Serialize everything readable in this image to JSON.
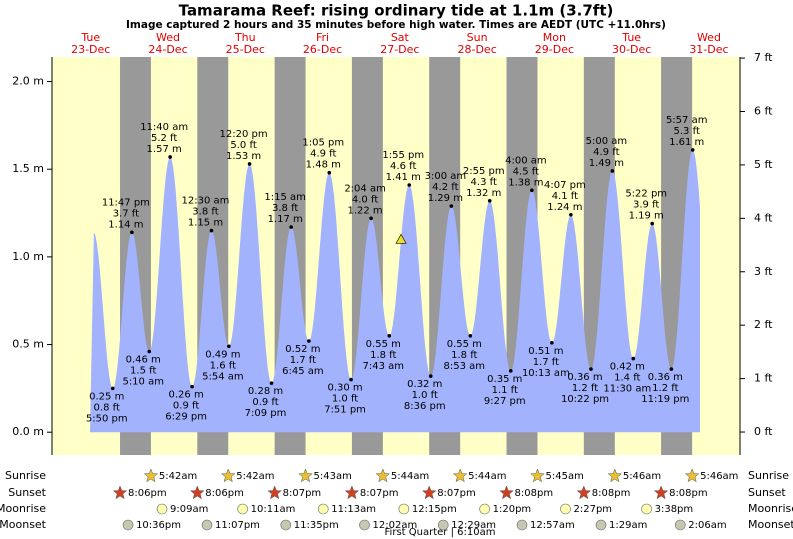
{
  "chart_data": {
    "type": "tide",
    "title": "Tamarama Reef: rising  ordinary tide at 1.1m (3.7ft)",
    "subtitle": "Image captured 2 hours and 35 minutes before high water. Times are AEDT (UTC +11.0hrs)",
    "ylim": [
      -0.13,
      2.14
    ],
    "yticks": [
      {
        "value": 0,
        "label": "0.0 m"
      },
      {
        "value": 0.5,
        "label": "0.5 m"
      },
      {
        "value": 1,
        "label": "1.0 m"
      },
      {
        "value": 1.5,
        "label": "1.5 m"
      },
      {
        "value": 2,
        "label": "2.0 m"
      }
    ],
    "y2lim": [
      -0.43,
      7.02
    ],
    "y2ticks": [
      {
        "value": 0,
        "label": "0 ft"
      },
      {
        "value": 1,
        "label": "1 ft"
      },
      {
        "value": 2,
        "label": "2 ft"
      },
      {
        "value": 3,
        "label": "3 ft"
      },
      {
        "value": 4,
        "label": "4 ft"
      },
      {
        "value": 5,
        "label": "5 ft"
      },
      {
        "value": 6,
        "label": "6 ft"
      },
      {
        "value": 7,
        "label": "7 ft"
      }
    ],
    "current": {
      "height": 1.1
    },
    "colors": {
      "day": "#ffffc8",
      "night": "#999999",
      "water": "#a3b2fc"
    },
    "row_labels": [
      "Sunrise",
      "Sunset",
      "Moonrise",
      "Moonset"
    ],
    "moon_phase": "First Quarter | 6:10am",
    "days": [
      {
        "weekday": "Tue",
        "date": "23-Dec",
        "sunset": "8:06pm",
        "moonset": "10:36pm",
        "tides": [
          {
            "time": "5:50 pm",
            "height": 0.25,
            "height_label": "0.25 m",
            "feet": "0.8 ft"
          },
          {
            "time": "11:47 pm",
            "height": 1.14,
            "height_label": "1.14 m",
            "feet": "3.7 ft"
          }
        ]
      },
      {
        "weekday": "Wed",
        "date": "24-Dec",
        "sunrise": "5:42am",
        "sunset": "8:06pm",
        "moonrise": "9:09am",
        "moonset": "11:07pm",
        "tides": [
          {
            "time": "5:10 am",
            "height": 0.46,
            "height_label": "0.46 m",
            "feet": "1.5 ft"
          },
          {
            "time": "11:40 am",
            "height": 1.57,
            "height_label": "1.57 m",
            "feet": "5.2 ft"
          },
          {
            "time": "6:29 pm",
            "height": 0.26,
            "height_label": "0.26 m",
            "feet": "0.9 ft"
          }
        ]
      },
      {
        "weekday": "Thu",
        "date": "25-Dec",
        "sunrise": "5:42am",
        "sunset": "8:07pm",
        "moonrise": "10:11am",
        "moonset": "11:35pm",
        "tides": [
          {
            "time": "12:30 am",
            "height": 1.15,
            "height_label": "1.15 m",
            "feet": "3.8 ft"
          },
          {
            "time": "5:54 am",
            "height": 0.49,
            "height_label": "0.49 m",
            "feet": "1.6 ft"
          },
          {
            "time": "12:20 pm",
            "height": 1.53,
            "height_label": "1.53 m",
            "feet": "5.0 ft"
          },
          {
            "time": "7:09 pm",
            "height": 0.28,
            "height_label": "0.28 m",
            "feet": "0.9 ft"
          }
        ]
      },
      {
        "weekday": "Fri",
        "date": "26-Dec",
        "sunrise": "5:43am",
        "sunset": "8:07pm",
        "moonrise": "11:13am",
        "tides": [
          {
            "time": "1:15 am",
            "height": 1.17,
            "height_label": "1.17 m",
            "feet": "3.8 ft"
          },
          {
            "time": "6:45 am",
            "height": 0.52,
            "height_label": "0.52 m",
            "feet": "1.7 ft"
          },
          {
            "time": "1:05 pm",
            "height": 1.48,
            "height_label": "1.48 m",
            "feet": "4.9 ft"
          },
          {
            "time": "7:51 pm",
            "height": 0.3,
            "height_label": "0.30 m",
            "feet": "1.0 ft"
          }
        ]
      },
      {
        "weekday": "Sat",
        "date": "27-Dec",
        "sunrise": "5:44am",
        "sunset": "8:07pm",
        "moonrise": "12:15pm",
        "moonset": "12:02am",
        "tides": [
          {
            "time": "2:04 am",
            "height": 1.22,
            "height_label": "1.22 m",
            "feet": "4.0 ft"
          },
          {
            "time": "7:43 am",
            "height": 0.55,
            "height_label": "0.55 m",
            "feet": "1.8 ft"
          },
          {
            "time": "1:55 pm",
            "height": 1.41,
            "height_label": "1.41 m",
            "feet": "4.6 ft"
          },
          {
            "time": "8:36 pm",
            "height": 0.32,
            "height_label": "0.32 m",
            "feet": "1.0 ft"
          }
        ]
      },
      {
        "weekday": "Sun",
        "date": "28-Dec",
        "sunrise": "5:44am",
        "sunset": "8:08pm",
        "moonrise": "1:20pm",
        "moonset": "12:29am",
        "tides": [
          {
            "time": "3:00 am",
            "height": 1.29,
            "height_label": "1.29 m",
            "feet": "4.2 ft"
          },
          {
            "time": "8:53 am",
            "height": 0.55,
            "height_label": "0.55 m",
            "feet": "1.8 ft"
          },
          {
            "time": "2:55 pm",
            "height": 1.32,
            "height_label": "1.32 m",
            "feet": "4.3 ft"
          },
          {
            "time": "9:27 pm",
            "height": 0.35,
            "height_label": "0.35 m",
            "feet": "1.1 ft"
          }
        ]
      },
      {
        "weekday": "Mon",
        "date": "29-Dec",
        "sunrise": "5:45am",
        "sunset": "8:08pm",
        "moonrise": "2:27pm",
        "moonset": "12:57am",
        "tides": [
          {
            "time": "4:00 am",
            "height": 1.38,
            "height_label": "1.38 m",
            "feet": "4.5 ft"
          },
          {
            "time": "10:13 am",
            "height": 0.51,
            "height_label": "0.51 m",
            "feet": "1.7 ft"
          },
          {
            "time": "4:07 pm",
            "height": 1.24,
            "height_label": "1.24 m",
            "feet": "4.1 ft"
          },
          {
            "time": "10:22 pm",
            "height": 0.36,
            "height_label": "0.36 m",
            "feet": "1.2 ft"
          }
        ]
      },
      {
        "weekday": "Tue",
        "date": "30-Dec",
        "sunrise": "5:46am",
        "sunset": "8:08pm",
        "moonrise": "3:38pm",
        "moonset": "1:29am",
        "tides": [
          {
            "time": "5:00 am",
            "height": 1.49,
            "height_label": "1.49 m",
            "feet": "4.9 ft"
          },
          {
            "time": "11:30 am",
            "height": 0.42,
            "height_label": "0.42 m",
            "feet": "1.4 ft"
          },
          {
            "time": "5:22 pm",
            "height": 1.19,
            "height_label": "1.19 m",
            "feet": "3.9 ft"
          },
          {
            "time": "11:19 pm",
            "height": 0.36,
            "height_label": "0.36 m",
            "feet": "1.2 ft"
          }
        ]
      },
      {
        "weekday": "Wed",
        "date": "31-Dec",
        "sunrise": "5:46am",
        "moonset": "2:06am",
        "tides": [
          {
            "time": "5:57 am",
            "height": 1.61,
            "height_label": "1.61 m",
            "feet": "5.3 ft"
          }
        ]
      }
    ]
  }
}
